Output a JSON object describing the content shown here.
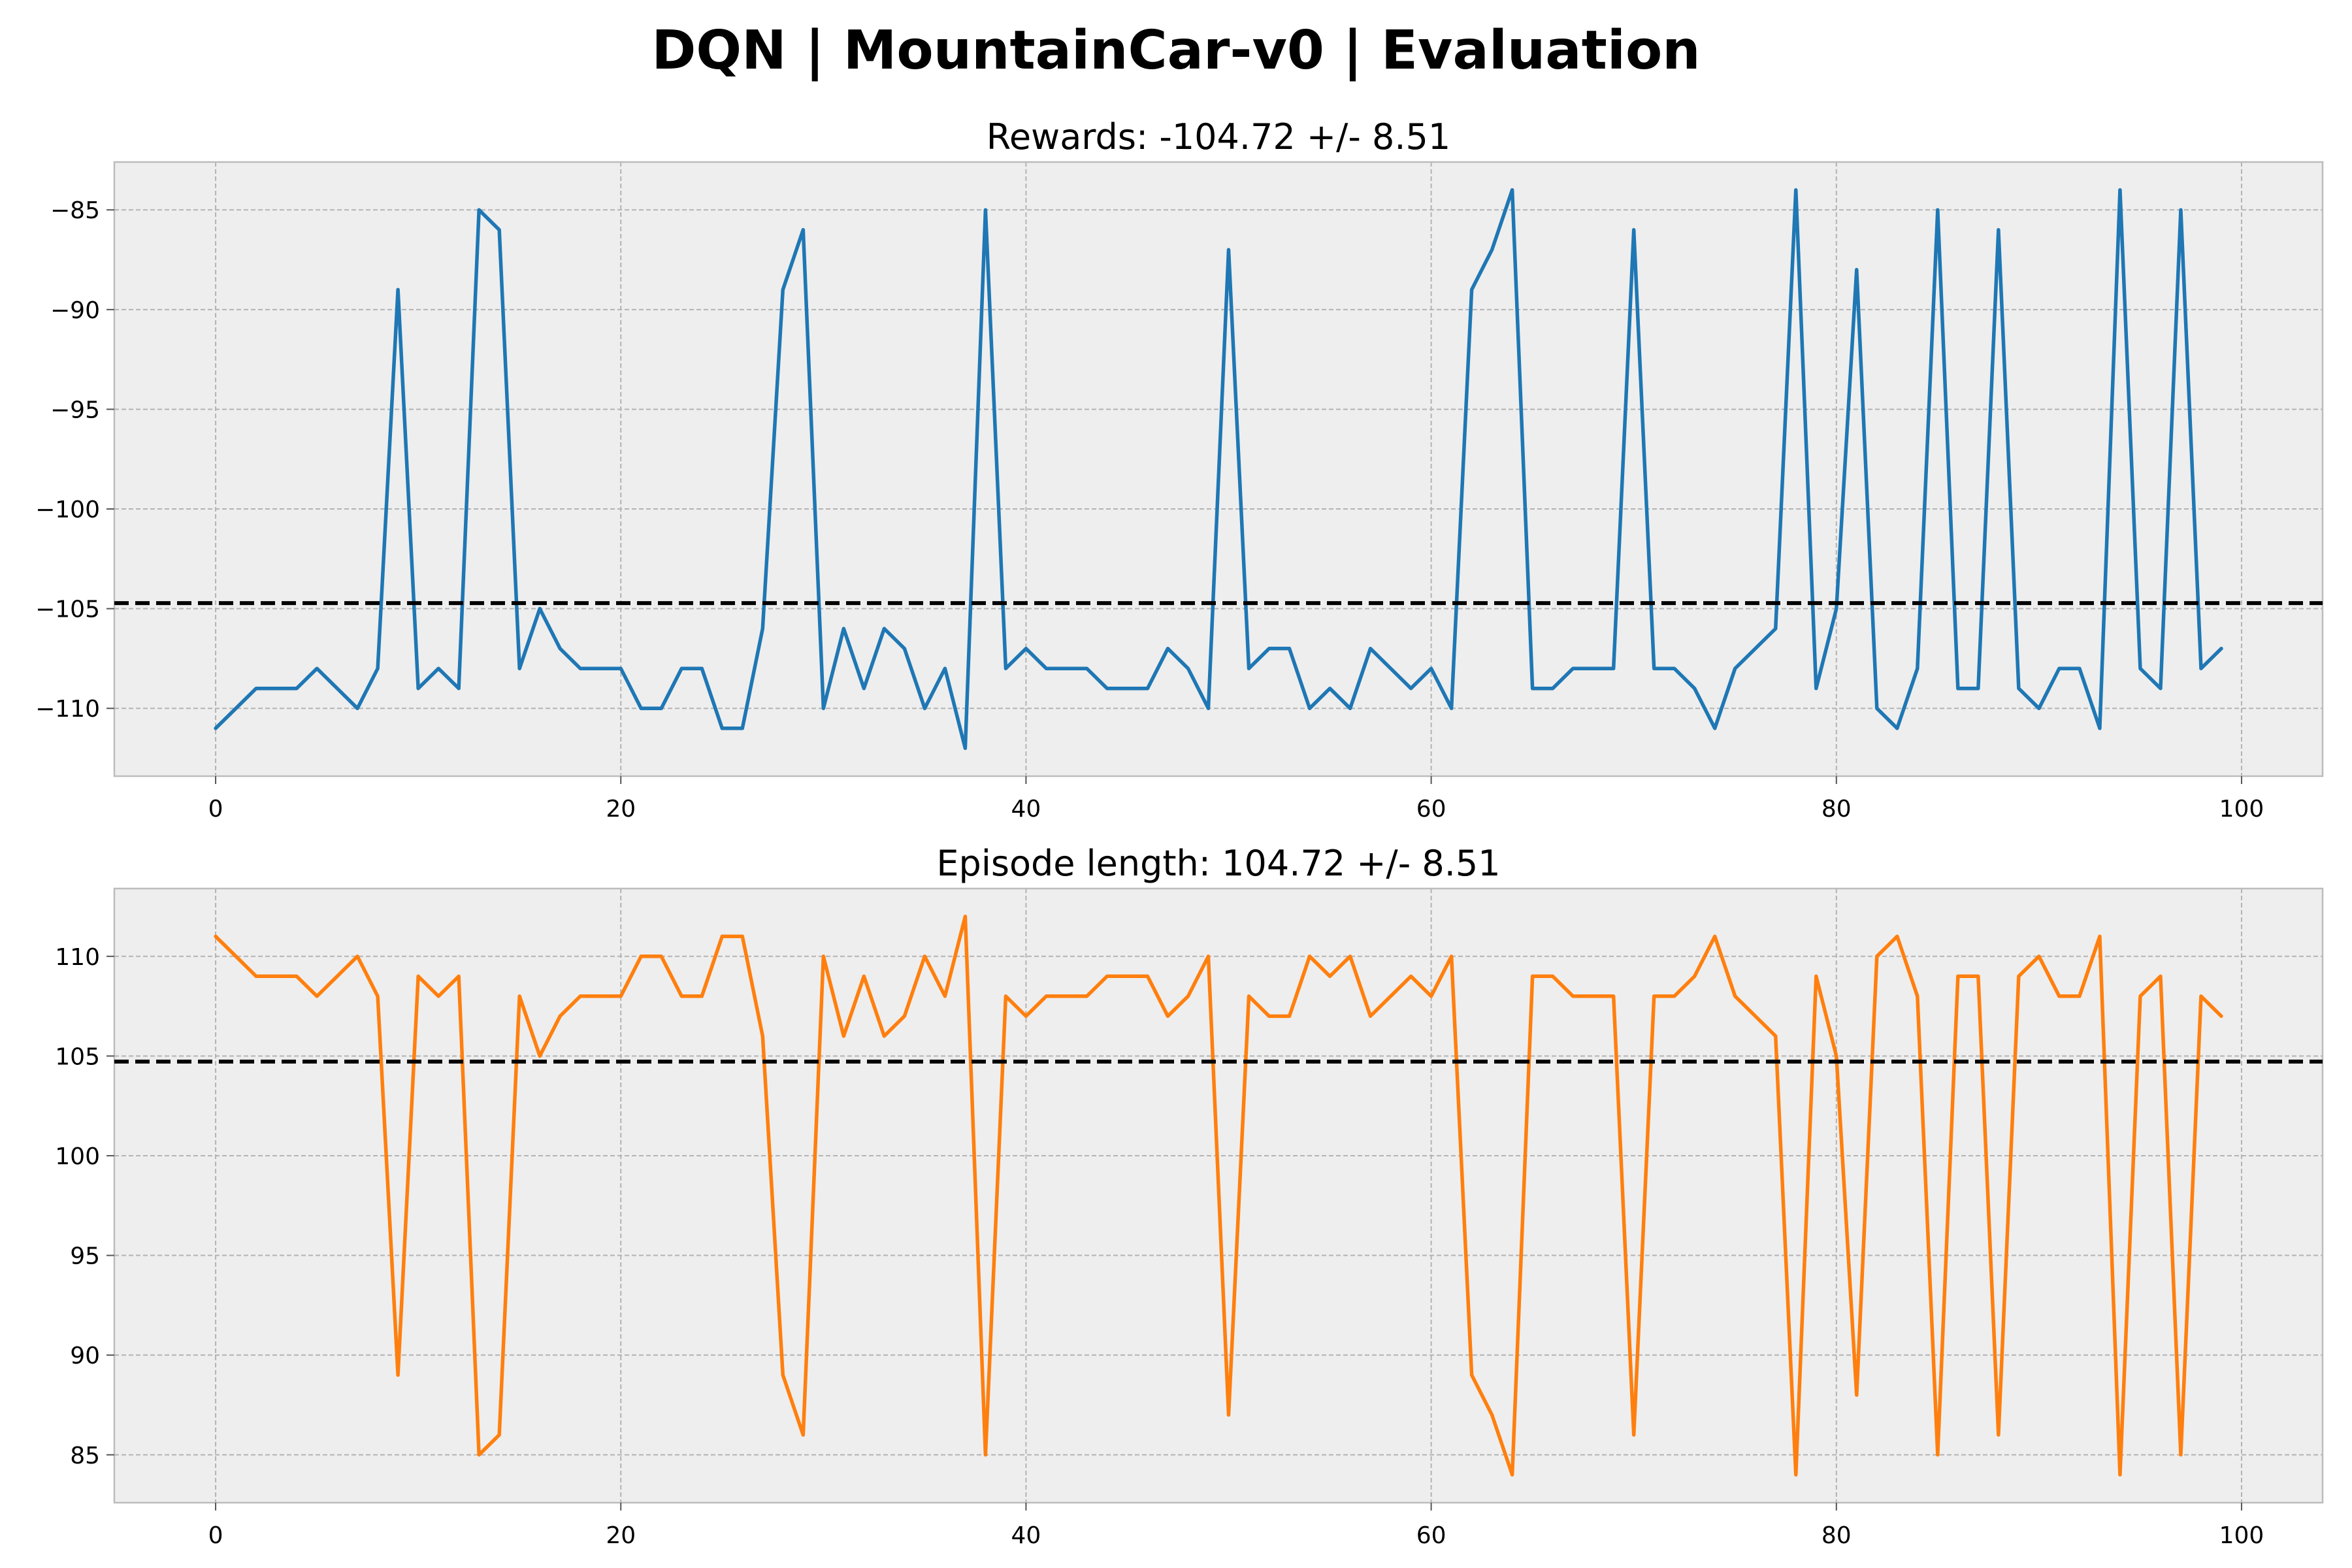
{
  "figure": {
    "title": "DQN | MountainCar-v0 | Evaluation"
  },
  "chart_data": [
    {
      "type": "line",
      "title": "Rewards: -104.72 +/- 8.51",
      "xlabel": "",
      "ylabel": "",
      "xlim": [
        -5,
        104
      ],
      "ylim": [
        -113.4,
        -82.6
      ],
      "xticks": [
        0,
        20,
        40,
        60,
        80,
        100
      ],
      "yticks": [
        -85,
        -90,
        -95,
        -100,
        -105,
        -110
      ],
      "ytick_labels": [
        "−85",
        "−90",
        "−95",
        "−100",
        "−105",
        "−110"
      ],
      "grid": true,
      "mean_line": {
        "value": -104.72,
        "color": "#000000",
        "style": "dashed"
      },
      "series": [
        {
          "color": "#1f77b4",
          "values": [
            -111,
            -110,
            -109,
            -109,
            -109,
            -108,
            -109,
            -110,
            -108,
            -89,
            -109,
            -108,
            -109,
            -85,
            -86,
            -108,
            -105,
            -107,
            -108,
            -108,
            -108,
            -110,
            -110,
            -108,
            -108,
            -111,
            -111,
            -106,
            -89,
            -86,
            -110,
            -106,
            -109,
            -106,
            -107,
            -110,
            -108,
            -112,
            -85,
            -108,
            -107,
            -108,
            -108,
            -108,
            -109,
            -109,
            -109,
            -107,
            -108,
            -110,
            -87,
            -108,
            -107,
            -107,
            -110,
            -109,
            -110,
            -107,
            -108,
            -109,
            -108,
            -110,
            -89,
            -87,
            -84,
            -109,
            -109,
            -108,
            -108,
            -108,
            -86,
            -108,
            -108,
            -109,
            -111,
            -108,
            -107,
            -106,
            -84,
            -109,
            -105,
            -88,
            -110,
            -111,
            -108,
            -85,
            -109,
            -109,
            -86,
            -109,
            -110,
            -108,
            -108,
            -111,
            -84,
            -108,
            -109,
            -85,
            -108,
            -107
          ]
        }
      ]
    },
    {
      "type": "line",
      "title": "Episode length: 104.72 +/- 8.51",
      "xlabel": "",
      "ylabel": "",
      "xlim": [
        -5,
        104
      ],
      "ylim": [
        82.6,
        113.4
      ],
      "xticks": [
        0,
        20,
        40,
        60,
        80,
        100
      ],
      "yticks": [
        110,
        105,
        100,
        95,
        90,
        85
      ],
      "ytick_labels": [
        "110",
        "105",
        "100",
        "95",
        "90",
        "85"
      ],
      "grid": true,
      "mean_line": {
        "value": 104.72,
        "color": "#000000",
        "style": "dashed"
      },
      "series": [
        {
          "color": "#ff7f0e",
          "values": [
            111,
            110,
            109,
            109,
            109,
            108,
            109,
            110,
            108,
            89,
            109,
            108,
            109,
            85,
            86,
            108,
            105,
            107,
            108,
            108,
            108,
            110,
            110,
            108,
            108,
            111,
            111,
            106,
            89,
            86,
            110,
            106,
            109,
            106,
            107,
            110,
            108,
            112,
            85,
            108,
            107,
            108,
            108,
            108,
            109,
            109,
            109,
            107,
            108,
            110,
            87,
            108,
            107,
            107,
            110,
            109,
            110,
            107,
            108,
            109,
            108,
            110,
            89,
            87,
            84,
            109,
            109,
            108,
            108,
            108,
            86,
            108,
            108,
            109,
            111,
            108,
            107,
            106,
            84,
            109,
            105,
            88,
            110,
            111,
            108,
            85,
            109,
            109,
            86,
            109,
            110,
            108,
            108,
            111,
            84,
            108,
            109,
            85,
            108,
            107
          ]
        }
      ]
    }
  ]
}
